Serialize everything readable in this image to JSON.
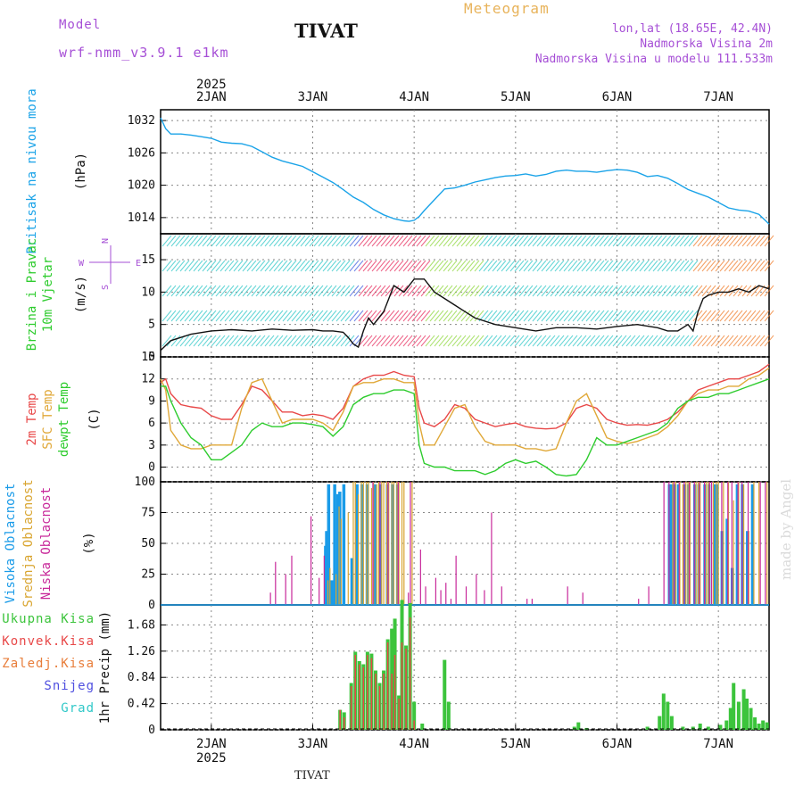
{
  "header": {
    "model_label": "Model",
    "model_name": "wrf-nmm_v3.9.1 e1km",
    "station": "TIVAT",
    "meteogram_label": "Meteogram",
    "lonlat": "lon,lat (18.65E, 42.4N)",
    "altitude": "Nadmorska Visina 2m",
    "model_altitude": "Nadmorska Visina u modelu 111.533m",
    "made_by": "made by Angel",
    "footer_station": "TIVAT"
  },
  "colors": {
    "pressure": "#1aa3e8",
    "temp2m": "#e84848",
    "sfc_temp": "#e0a838",
    "dewpt": "#2ecc2e",
    "cloud_high": "#1a9be8",
    "cloud_mid": "#d9a530",
    "cloud_low": "#c8289a",
    "total_precip": "#3cc43c",
    "conv_precip": "#e84848",
    "frozen_precip": "#e87d3a",
    "snow": "#5050e0",
    "hail": "#30c8c8",
    "grid": "#888888"
  },
  "chart_data": [
    {
      "type": "line",
      "panel": "pressure",
      "ylabel": "Pritisak na nivou mora",
      "unit": "(hPa)",
      "ylim": [
        1011,
        1034
      ],
      "yticks": [
        1014,
        1020,
        1026,
        1032
      ],
      "x_days": [
        1.5,
        1.55,
        1.6,
        1.7,
        1.8,
        1.9,
        2.0,
        2.1,
        2.2,
        2.3,
        2.4,
        2.5,
        2.6,
        2.7,
        2.8,
        2.9,
        3.0,
        3.1,
        3.2,
        3.3,
        3.4,
        3.5,
        3.6,
        3.7,
        3.8,
        3.9,
        3.95,
        4.0,
        4.05,
        4.1,
        4.2,
        4.3,
        4.4,
        4.5,
        4.6,
        4.7,
        4.8,
        4.9,
        5.0,
        5.1,
        5.2,
        5.3,
        5.4,
        5.5,
        5.6,
        5.7,
        5.8,
        5.9,
        6.0,
        6.1,
        6.2,
        6.3,
        6.4,
        6.5,
        6.6,
        6.7,
        6.8,
        6.9,
        7.0,
        7.1,
        7.2,
        7.3,
        7.4,
        7.5
      ],
      "series": [
        {
          "values": [
            1032.5,
            1030.5,
            1029.5,
            1029.5,
            1029.3,
            1029,
            1028.7,
            1028,
            1027.8,
            1027.7,
            1027.2,
            1026.2,
            1025.2,
            1024.5,
            1024,
            1023.5,
            1022.5,
            1021.5,
            1020.5,
            1019.2,
            1017.8,
            1016.8,
            1015.5,
            1014.5,
            1013.8,
            1013.4,
            1013.3,
            1013.5,
            1014.2,
            1015.3,
            1017.3,
            1019.3,
            1019.5,
            1020,
            1020.6,
            1021,
            1021.4,
            1021.7,
            1021.8,
            1022.1,
            1021.7,
            1022,
            1022.6,
            1022.8,
            1022.6,
            1022.6,
            1022.4,
            1022.7,
            1022.9,
            1022.8,
            1022.4,
            1021.6,
            1021.8,
            1021.3,
            1020.3,
            1019.2,
            1018.5,
            1017.8,
            1016.8,
            1015.8,
            1015.4,
            1015.2,
            1014.6,
            1012.8
          ]
        }
      ]
    },
    {
      "type": "line",
      "panel": "wind",
      "ylabel": "10m Vjetar Brzina i Pravac",
      "unit": "(m/s)",
      "compass": {
        "n": "N",
        "s": "S",
        "e": "E",
        "w": "W"
      },
      "ylim": [
        0,
        19
      ],
      "yticks": [
        0,
        5,
        10,
        15
      ],
      "x_days": [
        1.5,
        1.6,
        1.7,
        1.8,
        2.0,
        2.2,
        2.4,
        2.6,
        2.8,
        3.0,
        3.1,
        3.2,
        3.3,
        3.35,
        3.4,
        3.45,
        3.5,
        3.55,
        3.6,
        3.7,
        3.75,
        3.8,
        3.9,
        4.0,
        4.1,
        4.2,
        4.3,
        4.4,
        4.5,
        4.6,
        4.8,
        5.0,
        5.2,
        5.4,
        5.6,
        5.8,
        6.0,
        6.2,
        6.4,
        6.5,
        6.6,
        6.7,
        6.75,
        6.8,
        6.85,
        6.9,
        7.0,
        7.1,
        7.2,
        7.3,
        7.4,
        7.5
      ],
      "series": [
        {
          "name": "speed",
          "values": [
            1,
            2.5,
            3,
            3.5,
            4,
            4.2,
            4,
            4.3,
            4.1,
            4.2,
            4,
            4,
            3.8,
            3,
            2,
            1.5,
            4,
            6,
            5,
            7,
            9,
            11,
            10,
            12,
            12,
            10,
            9,
            8,
            7,
            6,
            5,
            4.5,
            4,
            4.5,
            4.5,
            4.3,
            4.7,
            5,
            4.5,
            4,
            4,
            5,
            4,
            7,
            9,
            9.5,
            10,
            10,
            10.5,
            10,
            11,
            10.5
          ]
        }
      ]
    },
    {
      "type": "line",
      "panel": "temperature",
      "ylabel_lines": [
        "2m Temp",
        "SFC Temp",
        "dewpt Temp"
      ],
      "unit": "(C)",
      "ylim": [
        -2,
        15
      ],
      "yticks": [
        0,
        3,
        6,
        9,
        12,
        15
      ],
      "x_days": [
        1.5,
        1.55,
        1.6,
        1.7,
        1.8,
        1.9,
        2.0,
        2.1,
        2.2,
        2.3,
        2.4,
        2.5,
        2.6,
        2.7,
        2.8,
        2.9,
        3.0,
        3.1,
        3.2,
        3.3,
        3.4,
        3.5,
        3.6,
        3.7,
        3.8,
        3.9,
        4.0,
        4.05,
        4.1,
        4.2,
        4.3,
        4.4,
        4.5,
        4.6,
        4.7,
        4.8,
        4.9,
        5.0,
        5.1,
        5.2,
        5.3,
        5.4,
        5.5,
        5.6,
        5.7,
        5.8,
        5.9,
        6.0,
        6.1,
        6.2,
        6.3,
        6.4,
        6.5,
        6.6,
        6.7,
        6.8,
        6.9,
        7.0,
        7.1,
        7.2,
        7.3,
        7.4,
        7.5
      ],
      "series": [
        {
          "name": "2m Temp",
          "values": [
            11.5,
            12,
            10,
            8.5,
            8.2,
            8,
            7,
            6.5,
            6.5,
            8.5,
            11,
            10.5,
            9,
            7.5,
            7.5,
            7,
            7.2,
            7,
            6.5,
            8,
            11,
            12,
            12.5,
            12.5,
            13,
            12.5,
            12.3,
            8,
            6,
            5.5,
            6.5,
            8.5,
            8,
            6.5,
            6,
            5.5,
            5.8,
            6,
            5.5,
            5.3,
            5.2,
            5.3,
            6,
            8,
            8.5,
            8,
            6.5,
            6,
            5.7,
            5.8,
            5.7,
            6,
            6.5,
            7.5,
            9,
            10.5,
            11,
            11.5,
            12,
            12,
            12.5,
            13,
            14
          ]
        },
        {
          "name": "SFC Temp",
          "values": [
            12,
            10.5,
            5,
            3,
            2.5,
            2.5,
            3,
            3,
            3,
            8,
            11.5,
            12,
            9,
            6,
            6.5,
            6.5,
            6.5,
            6,
            5,
            7.5,
            11,
            11.5,
            11.5,
            12,
            12,
            11.5,
            11.5,
            6,
            3,
            3,
            5.5,
            8,
            8.5,
            5.5,
            3.5,
            3,
            3,
            3,
            2.5,
            2.5,
            2.2,
            2.5,
            6,
            9,
            10,
            7,
            4,
            3.5,
            3.2,
            3.5,
            4,
            4.5,
            5.5,
            7,
            9,
            10,
            10.5,
            10.5,
            11,
            11,
            12,
            12.5,
            13.5
          ]
        },
        {
          "name": "dewpt Temp",
          "values": [
            11,
            11,
            9,
            6,
            4,
            3,
            1,
            1,
            2,
            3,
            5,
            6,
            5.5,
            5.5,
            6,
            6,
            5.8,
            5.5,
            4.2,
            5.5,
            8.5,
            9.5,
            10,
            10,
            10.5,
            10.5,
            10,
            3,
            0.5,
            0,
            0,
            -0.5,
            -0.5,
            -0.5,
            -1,
            -0.5,
            0.5,
            1,
            0.5,
            0.8,
            0,
            -1,
            -1.2,
            -1,
            1,
            4,
            3,
            3,
            3.5,
            4,
            4.5,
            5,
            6,
            8,
            9,
            9.5,
            9.5,
            10,
            10,
            10.5,
            11,
            11.5,
            12
          ]
        }
      ]
    },
    {
      "type": "bar",
      "panel": "clouds",
      "ylabel_lines": [
        "Visoka Oblacnost",
        "Srednja Oblacnost",
        "Niska Oblacnost"
      ],
      "unit": "(%)",
      "ylim": [
        0,
        100
      ],
      "yticks": [
        0,
        25,
        50,
        75,
        100
      ],
      "x_days": [
        2.57,
        2.62,
        2.72,
        2.78,
        2.97,
        3.05,
        3.1,
        3.14,
        3.15,
        3.17,
        3.2,
        3.23,
        3.26,
        3.28,
        3.32,
        3.35,
        3.4,
        3.42,
        3.45,
        3.48,
        3.5,
        3.53,
        3.55,
        3.58,
        3.6,
        3.63,
        3.65,
        3.68,
        3.7,
        3.73,
        3.75,
        3.78,
        3.8,
        3.83,
        3.85,
        3.88,
        3.9,
        3.93,
        3.95,
        3.98,
        4.05,
        4.1,
        4.2,
        4.25,
        4.3,
        4.35,
        4.4,
        4.5,
        4.6,
        4.68,
        4.75,
        4.85,
        5.1,
        5.15,
        5.5,
        5.65,
        6.2,
        6.3,
        6.45,
        6.5,
        6.53,
        6.55,
        6.58,
        6.6,
        6.62,
        6.65,
        6.68,
        6.7,
        6.72,
        6.75,
        6.78,
        6.8,
        6.82,
        6.85,
        6.88,
        6.9,
        6.92,
        6.95,
        6.98,
        7.0,
        7.02,
        7.05,
        7.08,
        7.1,
        7.12,
        7.15,
        7.18,
        7.2,
        7.22,
        7.25,
        7.28,
        7.3,
        7.35,
        7.4,
        7.45,
        7.48
      ],
      "series": [
        {
          "name": "Visoka Oblacnost",
          "values": [
            0,
            0,
            0,
            0,
            0,
            0,
            0,
            48,
            60,
            98,
            20,
            98,
            90,
            92,
            98,
            0,
            38,
            0,
            98,
            0,
            98,
            0,
            98,
            0,
            0,
            98,
            0,
            98,
            0,
            0,
            98,
            0,
            98,
            0,
            98,
            0,
            0,
            0,
            0,
            0,
            0,
            0,
            0,
            0,
            0,
            0,
            0,
            0,
            0,
            0,
            0,
            0,
            0,
            0,
            0,
            0,
            0,
            0,
            0,
            0,
            98,
            98,
            98,
            0,
            98,
            0,
            98,
            0,
            98,
            0,
            98,
            0,
            98,
            0,
            98,
            0,
            98,
            0,
            98,
            98,
            0,
            60,
            0,
            70,
            0,
            30,
            0,
            98,
            0,
            98,
            0,
            60,
            98,
            0,
            0,
            0
          ]
        },
        {
          "name": "Srednja Oblacnost",
          "values": [
            0,
            0,
            0,
            0,
            0,
            0,
            0,
            0,
            20,
            30,
            0,
            25,
            80,
            70,
            0,
            75,
            100,
            100,
            90,
            100,
            100,
            100,
            100,
            95,
            100,
            98,
            100,
            100,
            100,
            100,
            100,
            100,
            100,
            100,
            100,
            100,
            100,
            0,
            0,
            100,
            0,
            0,
            0,
            0,
            0,
            0,
            0,
            0,
            0,
            0,
            0,
            0,
            0,
            0,
            0,
            0,
            0,
            0,
            0,
            0,
            0,
            100,
            100,
            0,
            100,
            98,
            100,
            100,
            100,
            0,
            100,
            100,
            100,
            0,
            100,
            100,
            0,
            100,
            100,
            100,
            0,
            100,
            0,
            100,
            0,
            85,
            0,
            100,
            0,
            98,
            0,
            60,
            100,
            100,
            0,
            100
          ]
        },
        {
          "name": "Niska Oblacnost",
          "values": [
            10,
            35,
            25,
            40,
            72,
            22,
            40,
            0,
            0,
            0,
            0,
            0,
            0,
            0,
            0,
            0,
            0,
            0,
            0,
            0,
            0,
            0,
            0,
            100,
            0,
            0,
            100,
            0,
            0,
            100,
            0,
            0,
            0,
            100,
            0,
            0,
            0,
            10,
            100,
            0,
            45,
            15,
            22,
            12,
            18,
            5,
            40,
            15,
            25,
            12,
            75,
            15,
            5,
            5,
            15,
            10,
            5,
            15,
            100,
            100,
            0,
            100,
            0,
            100,
            0,
            100,
            0,
            100,
            0,
            100,
            0,
            100,
            0,
            100,
            0,
            100,
            100,
            0,
            0,
            0,
            100,
            0,
            100,
            0,
            100,
            0,
            100,
            0,
            100,
            0,
            100,
            0,
            0,
            100,
            100,
            0
          ]
        }
      ]
    },
    {
      "type": "bar",
      "panel": "precipitation",
      "legend": [
        "Ukupna Kisa",
        "Konvek.Kisa",
        "Zaledj.Kisa",
        "Snijeg",
        "Grad"
      ],
      "ylabel": "1hr Precip (mm)",
      "ylim": [
        0,
        2.0
      ],
      "yticks": [
        0,
        0.42,
        0.84,
        1.26,
        1.68
      ],
      "x_days": [
        3.27,
        3.31,
        3.38,
        3.42,
        3.46,
        3.5,
        3.54,
        3.58,
        3.62,
        3.66,
        3.7,
        3.74,
        3.78,
        3.81,
        3.85,
        3.88,
        3.92,
        3.96,
        4.0,
        4.08,
        4.3,
        4.34,
        5.58,
        5.62,
        5.7,
        6.3,
        6.42,
        6.46,
        6.5,
        6.54,
        6.65,
        6.75,
        6.82,
        6.9,
        7.02,
        7.08,
        7.12,
        7.15,
        7.2,
        7.25,
        7.28,
        7.32,
        7.36,
        7.4,
        7.44,
        7.48
      ],
      "series": [
        {
          "name": "Ukupna Kisa",
          "values": [
            0.32,
            0.28,
            0.75,
            1.25,
            1.1,
            1.05,
            1.25,
            1.22,
            0.95,
            0.75,
            0.95,
            1.45,
            1.62,
            1.78,
            0.55,
            2.08,
            1.35,
            2.03,
            0.45,
            0.1,
            1.12,
            0.45,
            0.05,
            0.12,
            0.03,
            0.05,
            0.22,
            0.58,
            0.45,
            0.22,
            0.05,
            0.05,
            0.1,
            0.05,
            0.08,
            0.15,
            0.35,
            0.75,
            0.45,
            0.65,
            0.5,
            0.35,
            0.2,
            0.1,
            0.15,
            0.12
          ]
        },
        {
          "name": "Konvek.Kisa",
          "values": [
            0.32,
            0.2,
            0.7,
            1.2,
            1.05,
            1.0,
            1.2,
            1.15,
            0.9,
            0.7,
            0.9,
            1.4,
            0.9,
            1.2,
            0.5,
            1.4,
            1.3,
            1.8,
            0.15,
            0,
            0,
            0,
            0,
            0,
            0,
            0,
            0,
            0,
            0,
            0,
            0,
            0,
            0,
            0,
            0,
            0,
            0,
            0,
            0,
            0,
            0,
            0,
            0,
            0,
            0,
            0
          ]
        }
      ]
    }
  ],
  "axis": {
    "year": "2025",
    "day_labels": [
      "2JAN",
      "3JAN",
      "4JAN",
      "5JAN",
      "6JAN",
      "7JAN"
    ],
    "day_values": [
      2,
      3,
      4,
      5,
      6,
      7
    ],
    "x_range": [
      1.5,
      7.5
    ]
  }
}
